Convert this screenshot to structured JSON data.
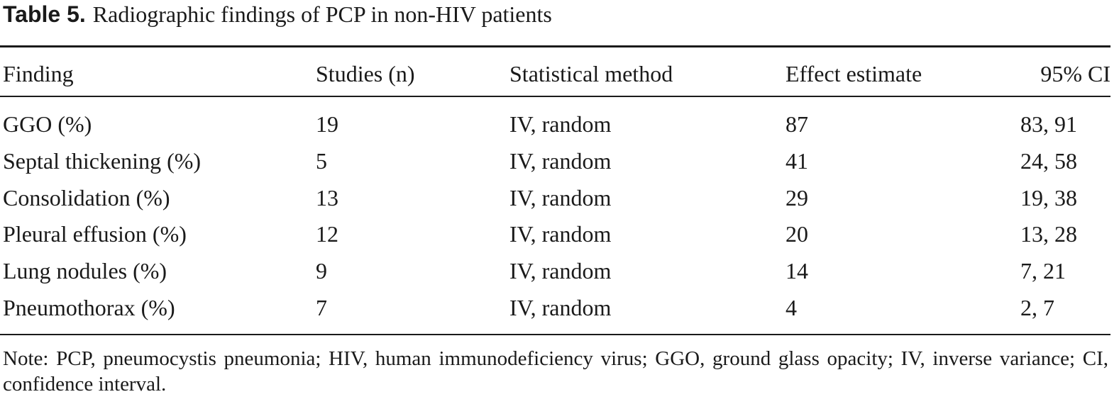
{
  "caption": {
    "label": "Table 5.",
    "title": "Radiographic findings of PCP in non-HIV patients"
  },
  "table": {
    "headers": [
      "Finding",
      "Studies (n)",
      "Statistical method",
      "Effect estimate",
      "95% CI"
    ],
    "rows": [
      [
        "GGO (%)",
        "19",
        "IV, random",
        "87",
        "83, 91"
      ],
      [
        "Septal thickening (%)",
        "5",
        "IV, random",
        "41",
        "24, 58"
      ],
      [
        "Consolidation (%)",
        "13",
        "IV, random",
        "29",
        "19, 38"
      ],
      [
        "Pleural effusion (%)",
        "12",
        "IV, random",
        "20",
        "13, 28"
      ],
      [
        "Lung nodules (%)",
        "9",
        "IV, random",
        "14",
        "7, 21"
      ],
      [
        "Pneumothorax (%)",
        "7",
        "IV, random",
        "4",
        "2, 7"
      ]
    ]
  },
  "note": "Note: PCP, pneumocystis pneumonia; HIV, human immunodeficiency virus; GGO, ground glass opacity; IV, inverse variance; CI, confidence interval."
}
